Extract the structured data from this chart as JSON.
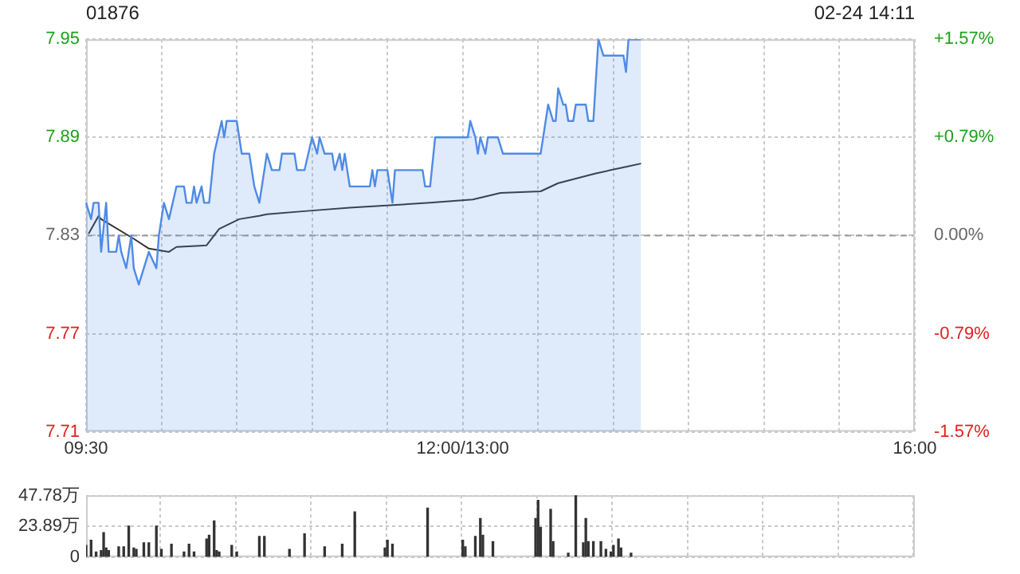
{
  "chart_data": [
    {
      "type": "area",
      "title": "01876",
      "annotations": [
        "02-24 14:11"
      ],
      "categories": [
        "09:30",
        null,
        null,
        null,
        null,
        null,
        null,
        null,
        null,
        null,
        null,
        null,
        null,
        null,
        null,
        null,
        null,
        null,
        null,
        null,
        null,
        null,
        null,
        null,
        null,
        null,
        null,
        null,
        null,
        null,
        null,
        null,
        null,
        null,
        null,
        null,
        null,
        null,
        null,
        null,
        null,
        null,
        null,
        null,
        null,
        null,
        null,
        null,
        null,
        null,
        null,
        null,
        null,
        null,
        null,
        null,
        null,
        null,
        null,
        null,
        null,
        null,
        null,
        null,
        null,
        null,
        null,
        null,
        null,
        null,
        null,
        null,
        null,
        null,
        null,
        null,
        null,
        null,
        null,
        null,
        null,
        null,
        null,
        null,
        null,
        null,
        null,
        null,
        null,
        null,
        null,
        null,
        null,
        null,
        null,
        null,
        null,
        null,
        null,
        null,
        null,
        null,
        null,
        null,
        null,
        null,
        null,
        null,
        null,
        null,
        null,
        null,
        null,
        null,
        null,
        null,
        null,
        null,
        null,
        null,
        null,
        null,
        null,
        null,
        null,
        null,
        null,
        null,
        null,
        null,
        null,
        null,
        null,
        null,
        null,
        null,
        null,
        null,
        null,
        null,
        null,
        null,
        null,
        null,
        null,
        null,
        null,
        null,
        null,
        null,
        "12:00/13:00",
        null,
        null,
        null,
        null,
        null,
        null,
        null,
        null,
        null,
        null,
        null,
        null,
        null,
        null,
        null,
        null,
        null,
        null,
        null,
        null,
        null,
        null,
        null,
        null,
        null,
        null,
        null,
        null,
        null,
        null,
        null,
        null,
        null,
        null,
        null,
        null,
        null,
        null,
        null,
        null,
        null,
        null,
        null,
        null,
        null,
        null,
        null,
        null,
        null,
        null,
        null,
        null,
        null,
        null,
        null,
        null,
        null,
        null,
        null,
        null,
        null,
        null,
        null,
        null,
        null,
        null,
        null,
        null,
        null,
        null,
        null,
        null,
        null,
        null,
        null,
        null,
        null,
        null,
        null,
        null,
        null,
        null,
        null,
        null,
        null,
        null,
        null,
        null,
        null,
        null,
        null,
        null,
        null,
        null,
        null,
        null,
        null,
        null,
        null,
        null,
        null,
        null,
        null,
        null,
        null,
        null,
        null,
        null,
        null,
        null,
        null,
        null,
        null,
        null,
        null,
        null,
        null,
        null,
        null,
        null,
        null,
        null,
        null,
        null,
        null,
        null,
        null,
        null,
        null,
        null,
        null,
        null,
        null,
        null,
        null,
        null,
        null,
        null,
        null,
        null,
        null,
        null,
        null,
        null,
        null,
        null,
        null,
        null,
        null,
        null,
        null,
        null,
        null,
        null,
        null,
        null,
        null,
        null,
        null,
        null,
        null,
        null,
        null,
        null,
        null,
        null,
        null,
        null,
        null,
        null,
        null,
        null,
        null,
        null,
        null,
        null,
        null,
        null,
        null,
        "16:00"
      ],
      "ylim": [
        7.71,
        7.95
      ],
      "yticks": [
        7.71,
        7.77,
        7.83,
        7.89,
        7.95
      ],
      "y2lim": [
        -1.57,
        1.57
      ],
      "y2ticks": [
        {
          "value": -1.57,
          "label": "-1.57%"
        },
        {
          "value": -0.79,
          "label": "-0.79%"
        },
        {
          "value": 0,
          "label": "0.00%"
        },
        {
          "value": 0.79,
          "label": "+0.79%"
        },
        {
          "value": 1.57,
          "label": "+1.57%"
        }
      ],
      "ref_lines": [
        {
          "axis": "y",
          "value": 7.83,
          "color": "#999999",
          "line_style": "dashed"
        }
      ],
      "grid": true,
      "series": [
        {
          "type": "area",
          "color": "#4f8ae6",
          "values": [
            7.85,
            null,
            7.84,
            7.85,
            null,
            7.85,
            7.82,
            null,
            7.85,
            7.82,
            null,
            null,
            7.82,
            7.83,
            7.82,
            null,
            7.81,
            null,
            7.83,
            7.81,
            null,
            7.8,
            null,
            7.81,
            null,
            7.82,
            null,
            null,
            7.81,
            7.83,
            null,
            7.85,
            null,
            7.84,
            null,
            null,
            7.86,
            null,
            null,
            7.86,
            7.85,
            null,
            7.85,
            7.86,
            7.85,
            null,
            7.86,
            7.85,
            null,
            7.85,
            null,
            7.88,
            null,
            null,
            7.9,
            7.89,
            7.9,
            null,
            null,
            null,
            7.9,
            null,
            7.88,
            null,
            null,
            7.88,
            null,
            7.86,
            null,
            7.85,
            null,
            null,
            7.88,
            null,
            7.87,
            null,
            null,
            7.87,
            7.88,
            null,
            null,
            null,
            null,
            7.88,
            7.87,
            null,
            null,
            7.87,
            null,
            null,
            7.89,
            null,
            7.88,
            7.89,
            null,
            7.88,
            null,
            null,
            7.88,
            7.87,
            null,
            7.88,
            7.87,
            7.88,
            null,
            7.86,
            null,
            null,
            null,
            null,
            null,
            null,
            null,
            7.86,
            7.87,
            7.86,
            7.87,
            null,
            null,
            null,
            7.87,
            null,
            7.85,
            7.87,
            null,
            null,
            null,
            null,
            null,
            null,
            null,
            null,
            null,
            null,
            7.87,
            7.86,
            null,
            7.86,
            null,
            7.89,
            null,
            null,
            null,
            null,
            null,
            null,
            null,
            null,
            null,
            null,
            null,
            null,
            7.89,
            7.9,
            null,
            7.89,
            7.88,
            7.89,
            null,
            7.88,
            7.89,
            null,
            null,
            null,
            7.89,
            null,
            7.88,
            null,
            null,
            null,
            null,
            null,
            null,
            null,
            null,
            null,
            null,
            null,
            null,
            null,
            null,
            7.88,
            null,
            null,
            7.91,
            null,
            7.9,
            7.9,
            7.92,
            null,
            7.91,
            7.91,
            7.9,
            null,
            7.9,
            7.91,
            null,
            null,
            null,
            7.91,
            7.9,
            null,
            7.9,
            null,
            7.95,
            null,
            7.94,
            null,
            null,
            null,
            null,
            null,
            null,
            null,
            7.94,
            7.93,
            7.95,
            null,
            null,
            null,
            null,
            7.95,
            null,
            null,
            null,
            null,
            null,
            null,
            null,
            null,
            null,
            null,
            null,
            null,
            null,
            null,
            null,
            null,
            null,
            null,
            null,
            null,
            null,
            null,
            null,
            null,
            null,
            null,
            null,
            null,
            null,
            null,
            null,
            null,
            null,
            null,
            null,
            null,
            null,
            null,
            null,
            null,
            null,
            null,
            null,
            null,
            null,
            null,
            null,
            null,
            null,
            null,
            null,
            null,
            null,
            null,
            null,
            null,
            null,
            null,
            null,
            null,
            null,
            null,
            null,
            null,
            null,
            null,
            null,
            null,
            null,
            null,
            null,
            null,
            null,
            null,
            null,
            null,
            null,
            null,
            null,
            null,
            null,
            null,
            null,
            null,
            null,
            null,
            null,
            null,
            null,
            null,
            null,
            null,
            null,
            null,
            null,
            null,
            null,
            null,
            null,
            null,
            null,
            null,
            null,
            null,
            null,
            null,
            null,
            null,
            null
          ]
        },
        {
          "type": "line",
          "color": "#333333",
          "values": [
            null,
            7.831,
            null,
            null,
            null,
            7.842,
            7.84,
            null,
            null,
            null,
            null,
            null,
            null,
            null,
            null,
            null,
            null,
            null,
            null,
            7.828,
            null,
            null,
            null,
            null,
            null,
            7.822,
            null,
            null,
            null,
            null,
            null,
            null,
            null,
            7.82,
            null,
            null,
            7.823,
            null,
            null,
            null,
            null,
            null,
            null,
            null,
            null,
            null,
            null,
            null,
            7.824,
            null,
            null,
            null,
            null,
            7.834,
            null,
            null,
            null,
            null,
            null,
            null,
            null,
            7.84,
            null,
            null,
            null,
            null,
            null,
            null,
            null,
            7.842,
            null,
            null,
            7.843,
            null,
            null,
            null,
            null,
            null,
            null,
            null,
            null,
            null,
            null,
            null,
            null,
            null,
            null,
            null,
            7.845,
            null,
            null,
            null,
            null,
            null,
            null,
            null,
            null,
            null,
            null,
            null,
            null,
            null,
            null,
            null,
            null,
            7.847,
            null,
            null,
            null,
            null,
            null,
            null,
            null,
            null,
            null,
            null,
            null,
            null,
            null,
            null,
            null,
            null,
            null,
            null,
            null,
            null,
            null,
            null,
            null,
            null,
            null,
            null,
            null,
            null,
            null,
            null,
            null,
            7.85,
            null,
            null,
            null,
            null,
            null,
            null,
            null,
            null,
            null,
            null,
            null,
            null,
            null,
            null,
            null,
            null,
            7.852,
            null,
            null,
            null,
            null,
            null,
            null,
            null,
            null,
            null,
            null,
            7.856,
            null,
            null,
            null,
            null,
            null,
            null,
            null,
            null,
            null,
            null,
            null,
            null,
            null,
            null,
            null,
            7.857,
            null,
            null,
            null,
            null,
            null,
            null,
            7.862,
            null,
            null,
            null,
            null,
            null,
            null,
            null,
            null,
            null,
            null,
            null,
            null,
            null,
            null,
            7.868,
            null,
            null,
            null,
            null,
            null,
            null,
            null,
            null,
            null,
            null,
            null,
            7.872,
            null,
            null,
            null,
            null,
            null,
            7.874,
            null,
            null,
            null,
            null,
            null,
            null,
            null,
            null,
            null,
            null,
            null,
            null,
            null,
            null,
            null,
            null,
            null,
            null,
            null,
            null,
            null,
            null,
            null,
            null,
            null,
            null,
            null,
            null,
            null,
            null,
            null,
            null,
            null,
            null,
            null,
            null,
            null,
            null,
            null,
            null,
            null,
            null,
            null,
            null,
            null,
            null,
            null,
            null,
            null,
            null,
            null,
            null,
            null,
            null,
            null,
            null,
            null,
            null,
            null,
            null,
            null,
            null,
            null,
            null,
            null,
            null,
            null,
            null,
            null,
            null,
            null,
            null,
            null,
            null,
            null,
            null,
            null,
            null,
            null,
            null,
            null,
            null,
            null,
            null,
            null,
            null,
            null,
            null,
            null,
            null,
            null,
            null,
            null,
            null,
            null,
            null,
            null,
            null,
            null,
            null,
            null,
            null,
            null,
            null,
            null,
            null,
            null,
            null,
            null
          ]
        }
      ]
    },
    {
      "type": "bar",
      "color": "#333333",
      "tick_labels": "y",
      "grid": true,
      "categories": [
        null,
        null,
        null,
        null,
        null,
        null,
        null,
        null,
        null,
        null,
        null,
        null,
        null,
        null,
        null,
        null,
        null,
        null,
        null,
        null,
        null,
        null,
        null,
        null,
        null,
        null,
        null,
        null,
        null,
        null,
        null,
        null,
        null,
        null,
        null,
        null,
        null,
        null,
        null,
        null,
        null,
        null,
        null,
        null,
        null,
        null,
        null,
        null,
        null,
        null,
        null,
        null,
        null,
        null,
        null,
        null,
        null,
        null,
        null,
        null,
        null,
        null,
        null,
        null,
        null,
        null,
        null,
        null,
        null,
        null,
        null,
        null,
        null,
        null,
        null,
        null,
        null,
        null,
        null,
        null,
        null,
        null,
        null,
        null,
        null,
        null,
        null,
        null,
        null,
        null,
        null,
        null,
        null,
        null,
        null,
        null,
        null,
        null,
        null,
        null,
        null,
        null,
        null,
        null,
        null,
        null,
        null,
        null,
        null,
        null,
        null,
        null,
        null,
        null,
        null,
        null,
        null,
        null,
        null,
        null,
        null,
        null,
        null,
        null,
        null,
        null,
        null,
        null,
        null,
        null,
        null,
        null,
        null,
        null,
        null,
        null,
        null,
        null,
        null,
        null,
        null,
        null,
        null,
        null,
        null,
        null,
        null,
        null,
        null,
        null,
        null,
        null,
        null,
        null,
        null,
        null,
        null,
        null,
        null,
        null,
        null,
        null,
        null,
        null,
        null,
        null,
        null,
        null,
        null,
        null,
        null,
        null,
        null,
        null,
        null,
        null,
        null,
        null,
        null,
        null,
        null,
        null,
        null,
        null,
        null,
        null,
        null,
        null,
        null,
        null,
        null,
        null,
        null,
        null,
        null,
        null,
        null,
        null,
        null,
        null,
        null,
        null,
        null,
        null,
        null,
        null,
        null,
        null,
        null,
        null,
        null,
        null,
        null,
        null,
        null,
        null,
        null,
        null,
        null,
        null,
        null,
        null,
        null,
        null,
        null,
        null,
        null,
        null,
        null,
        null,
        null,
        null,
        null,
        null,
        null,
        null,
        null,
        null,
        null,
        null,
        null,
        null,
        null,
        null,
        null,
        null,
        null,
        null,
        null,
        null,
        null,
        null,
        null,
        null,
        null,
        null,
        null,
        null,
        null,
        null,
        null,
        null,
        null,
        null,
        null,
        null,
        null,
        null,
        null,
        null,
        null,
        null,
        null,
        null,
        null,
        null,
        null,
        null,
        null,
        null,
        null,
        null,
        null,
        null,
        null,
        null,
        null,
        null,
        null,
        null,
        null,
        null,
        null,
        null,
        null,
        null,
        null,
        null,
        null,
        null,
        null,
        null,
        null,
        null,
        null,
        null,
        null,
        null,
        null,
        null,
        null,
        null,
        null,
        null,
        null,
        null,
        null,
        null,
        null,
        null,
        null,
        null,
        null,
        null,
        null,
        null,
        null,
        null,
        null,
        null,
        null
      ],
      "ylim": [
        0,
        48
      ],
      "yticks": [
        0,
        {
          "value": 23.89,
          "label": "23.89万"
        },
        {
          "value": 47.78,
          "label": "47.78万"
        }
      ],
      "values": [
        9,
        null,
        13,
        null,
        4,
        null,
        5,
        19,
        7,
        5,
        null,
        null,
        null,
        8,
        null,
        8,
        null,
        24,
        null,
        7,
        6,
        null,
        null,
        11,
        null,
        11,
        null,
        null,
        24,
        null,
        6,
        null,
        null,
        null,
        10,
        null,
        null,
        null,
        null,
        4,
        null,
        10,
        null,
        4,
        null,
        null,
        null,
        null,
        14,
        17,
        null,
        28,
        5,
        4,
        null,
        null,
        null,
        null,
        9,
        null,
        4,
        null,
        null,
        null,
        null,
        null,
        null,
        null,
        null,
        16,
        null,
        16,
        null,
        null,
        null,
        null,
        null,
        null,
        null,
        null,
        null,
        6,
        null,
        null,
        null,
        null,
        null,
        18,
        null,
        null,
        null,
        null,
        null,
        null,
        null,
        8,
        null,
        null,
        null,
        null,
        null,
        null,
        10,
        null,
        null,
        null,
        null,
        35,
        null,
        null,
        null,
        null,
        null,
        null,
        null,
        null,
        null,
        null,
        null,
        7,
        13,
        null,
        10,
        null,
        null,
        null,
        null,
        null,
        null,
        null,
        null,
        null,
        null,
        null,
        null,
        null,
        38,
        null,
        null,
        null,
        null,
        null,
        null,
        null,
        null,
        null,
        null,
        null,
        null,
        null,
        13,
        8,
        null,
        null,
        null,
        16,
        null,
        30,
        17,
        null,
        null,
        null,
        12,
        null,
        null,
        null,
        null,
        null,
        null,
        null,
        null,
        null,
        null,
        null,
        null,
        null,
        null,
        null,
        null,
        30,
        44,
        23,
        null,
        null,
        null,
        37,
        12,
        null,
        null,
        null,
        null,
        null,
        3,
        null,
        null,
        48,
        null,
        null,
        11,
        30,
        12,
        null,
        12,
        null,
        null,
        12,
        null,
        6,
        null,
        4,
        9,
        null,
        14,
        7,
        null,
        null,
        null,
        3,
        null,
        null,
        null,
        null,
        null,
        null,
        null,
        null,
        null,
        null,
        null,
        null,
        null,
        null,
        null,
        null,
        null,
        null,
        null,
        null,
        null,
        null,
        null,
        null,
        null,
        null,
        null,
        null,
        null,
        null,
        null,
        null,
        null,
        null,
        null,
        null,
        null,
        null,
        null,
        null,
        null,
        null,
        null,
        null,
        null,
        null,
        null,
        null,
        null,
        null,
        null,
        null,
        null,
        null,
        null,
        null,
        null,
        null,
        null,
        null,
        null,
        null,
        null,
        null,
        null,
        null,
        null,
        null,
        null,
        null,
        null,
        null,
        null,
        null,
        null,
        null,
        null,
        null,
        null,
        null,
        null,
        null,
        null,
        null,
        null,
        null,
        null,
        null,
        null,
        null,
        null,
        null,
        null,
        null,
        null,
        null,
        null,
        null,
        null,
        null,
        null,
        null,
        null,
        null,
        null,
        null,
        null,
        null,
        null,
        null,
        null,
        null,
        null
      ]
    }
  ]
}
